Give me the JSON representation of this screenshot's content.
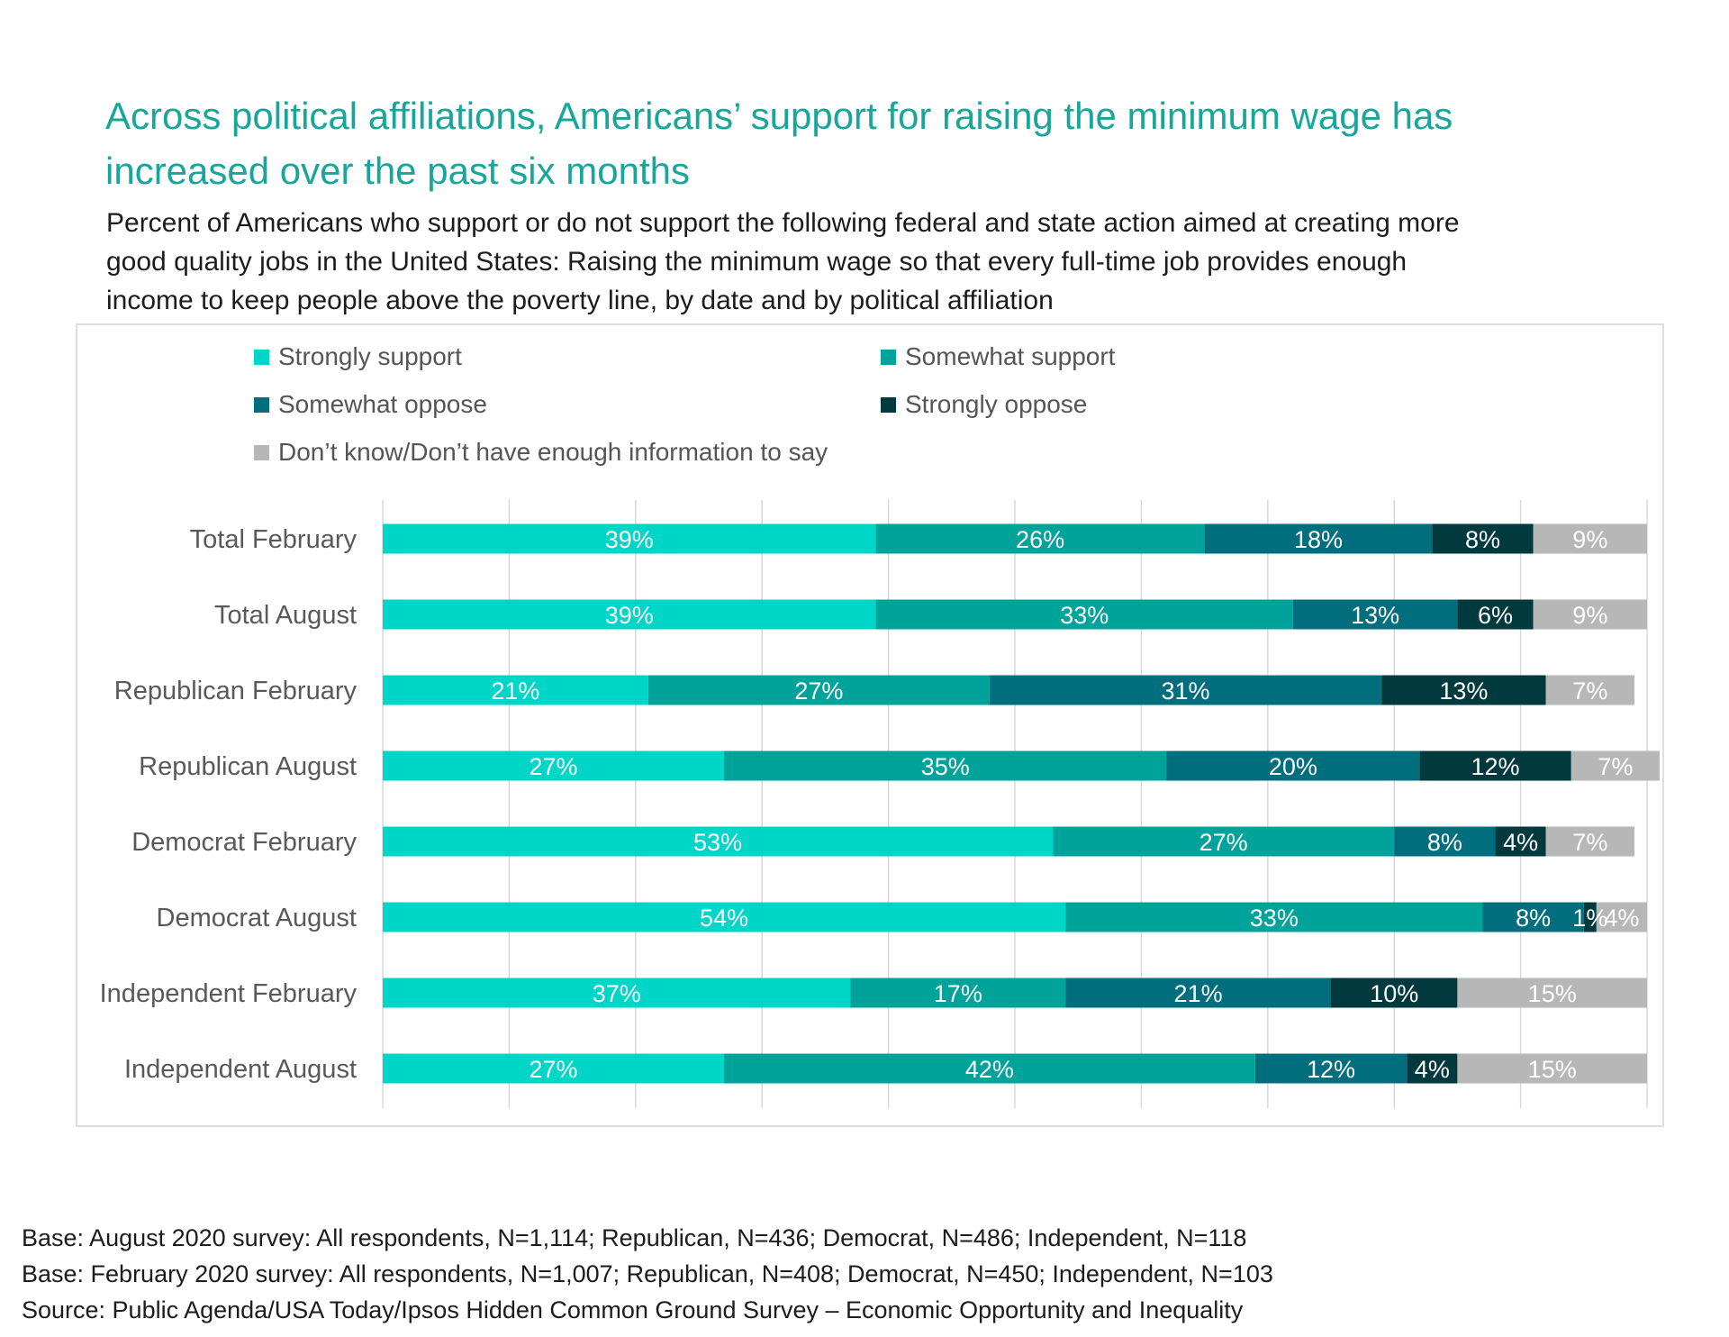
{
  "chart_data": {
    "type": "bar",
    "orientation": "horizontal",
    "stacked": true,
    "title": "Across political affiliations, Americans’ support for raising the minimum wage has increased over the past six months",
    "title_lines": [
      "Across political affiliations, Americans’ support for raising the minimum wage has",
      "increased over the past six months"
    ],
    "subtitle_lines": [
      "Percent of Americans who support or do not support the following federal and state action aimed at creating more",
      "good quality jobs in the United States:  Raising the minimum wage so that every full-time job provides enough",
      "income to keep people above the poverty line, by date and by political affiliation"
    ],
    "categories": [
      "Total February",
      "Total August",
      "Republican February",
      "Republican August",
      "Democrat February",
      "Democrat August",
      "Independent February",
      "Independent August"
    ],
    "series": [
      {
        "name": "Strongly support",
        "color": "#00d6c7",
        "values": [
          39,
          39,
          21,
          27,
          53,
          54,
          37,
          27
        ]
      },
      {
        "name": "Somewhat support",
        "color": "#00a399",
        "values": [
          26,
          33,
          27,
          35,
          27,
          33,
          17,
          42
        ]
      },
      {
        "name": "Somewhat oppose",
        "color": "#006e7c",
        "values": [
          18,
          13,
          31,
          20,
          8,
          8,
          21,
          12
        ]
      },
      {
        "name": "Strongly oppose",
        "color": "#013a3e",
        "values": [
          8,
          6,
          13,
          12,
          4,
          1,
          10,
          4
        ]
      },
      {
        "name": "Don’t know/Don’t have enough information to say",
        "color": "#b7b7b7",
        "values": [
          9,
          9,
          7,
          7,
          7,
          4,
          15,
          15
        ]
      }
    ],
    "value_suffix": "%",
    "xlim": [
      0,
      100
    ],
    "grid": true,
    "legend_position": "top"
  },
  "footer": {
    "line1": "Base: August 2020 survey: All respondents, N=1,114; Republican, N=436; Democrat, N=486; Independent, N=118",
    "line2": "Base:  February 2020 survey: All respondents, N=1,007; Republican, N=408; Democrat, N=450; Independent, N=103",
    "line3": "Source: Public Agenda/USA Today/Ipsos Hidden Common Ground Survey – Economic Opportunity and Inequality"
  }
}
